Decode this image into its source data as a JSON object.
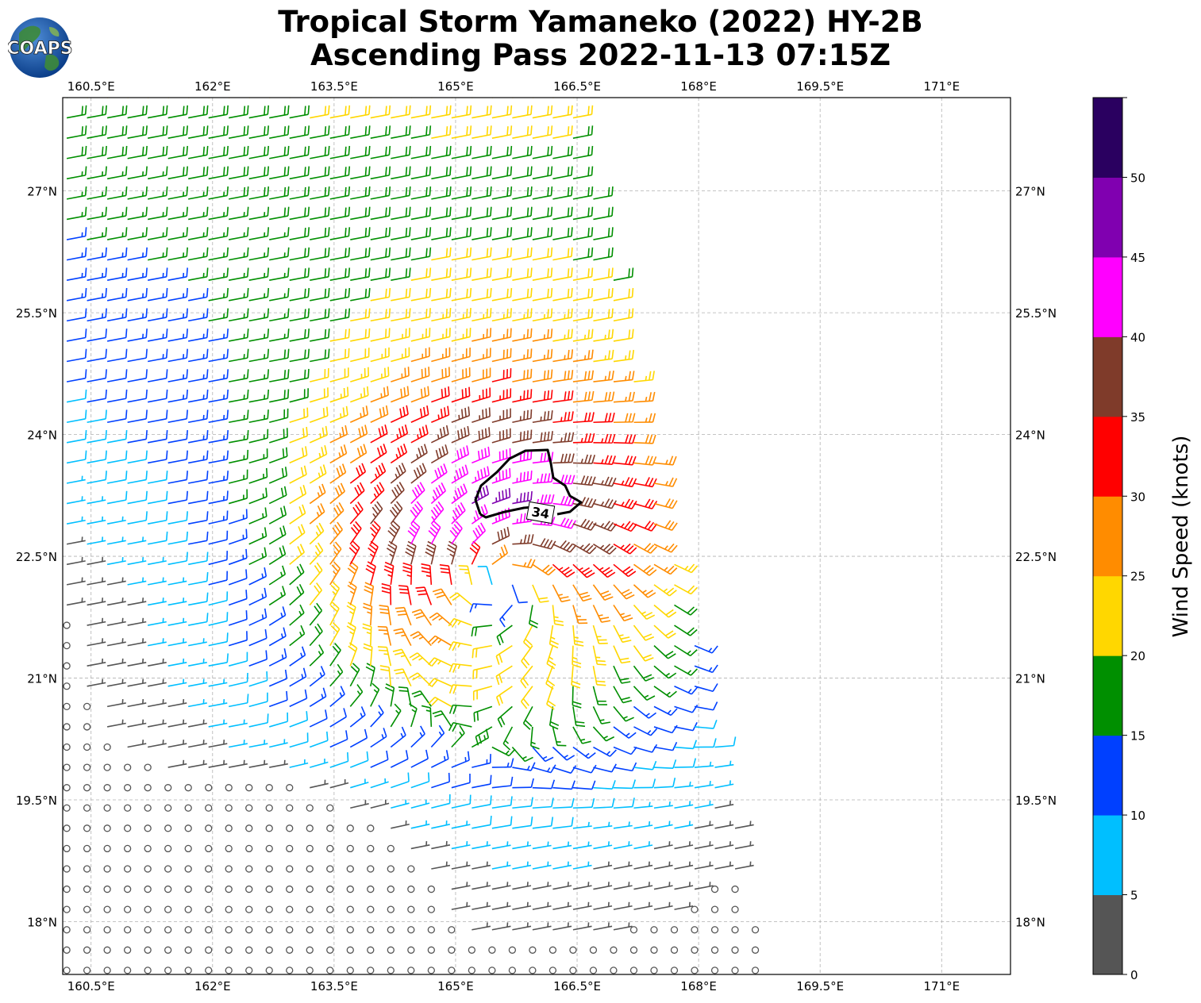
{
  "title": {
    "line1": "Tropical Storm Yamaneko (2022) HY-2B",
    "line2": "Ascending Pass 2022-11-13 07:15Z"
  },
  "logo": {
    "text": "COAPS",
    "icon": "globe-icon"
  },
  "map": {
    "lon_range": [
      160.15,
      171.85
    ],
    "lat_range": [
      17.35,
      28.15
    ],
    "lon_ticks": [
      "160.5°E",
      "162°E",
      "163.5°E",
      "165°E",
      "166.5°E",
      "168°E",
      "169.5°E",
      "171°E"
    ],
    "lon_tick_values": [
      160.5,
      162,
      163.5,
      165,
      166.5,
      168,
      169.5,
      171
    ],
    "lat_ticks": [
      "18°N",
      "19.5°N",
      "21°N",
      "22.5°N",
      "24°N",
      "25.5°N",
      "27°N"
    ],
    "lat_tick_values": [
      18,
      19.5,
      21,
      22.5,
      24,
      25.5,
      27
    ],
    "grid": true,
    "storm_center": {
      "lon": 165.55,
      "lat": 22.15
    },
    "contour_label": "34"
  },
  "colorbar": {
    "label": "Wind Speed (knots)",
    "ticks": [
      "0",
      "5",
      "10",
      "15",
      "20",
      "25",
      "30",
      "35",
      "40",
      "45",
      "50"
    ],
    "colors": [
      "#555555",
      "#00bfff",
      "#0040ff",
      "#008f00",
      "#ffd700",
      "#ff8c00",
      "#ff0000",
      "#7f3b2a",
      "#ff00ff",
      "#8000b0",
      "#2a0060"
    ]
  }
}
